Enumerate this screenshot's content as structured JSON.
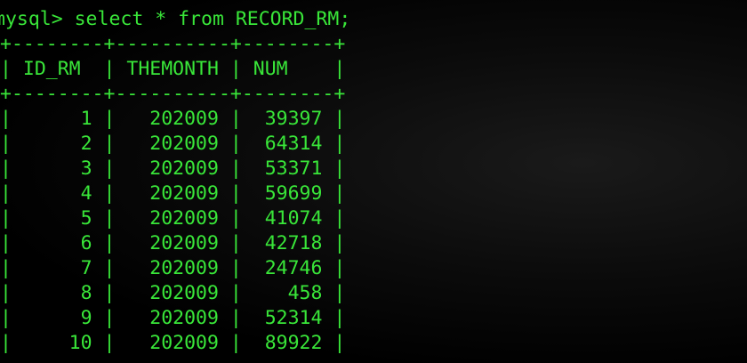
{
  "terminal": {
    "prompt": "mysql> ",
    "command": "select * from RECORD_RM;",
    "table": {
      "border": "+--------+----------+--------+",
      "columns": [
        "ID_RM",
        "THEMONTH",
        "NUM"
      ],
      "header_line": "| ID_RM  | THEMONTH | NUM    |",
      "rows": [
        {
          "id_rm": "1",
          "themonth": "202009",
          "num": "39397",
          "text": "|      1 |   202009 |  39397 |"
        },
        {
          "id_rm": "2",
          "themonth": "202009",
          "num": "64314",
          "text": "|      2 |   202009 |  64314 |"
        },
        {
          "id_rm": "3",
          "themonth": "202009",
          "num": "53371",
          "text": "|      3 |   202009 |  53371 |"
        },
        {
          "id_rm": "4",
          "themonth": "202009",
          "num": "59699",
          "text": "|      4 |   202009 |  59699 |"
        },
        {
          "id_rm": "5",
          "themonth": "202009",
          "num": "41074",
          "text": "|      5 |   202009 |  41074 |"
        },
        {
          "id_rm": "6",
          "themonth": "202009",
          "num": "42718",
          "text": "|      6 |   202009 |  42718 |"
        },
        {
          "id_rm": "7",
          "themonth": "202009",
          "num": "24746",
          "text": "|      7 |   202009 |  24746 |"
        },
        {
          "id_rm": "8",
          "themonth": "202009",
          "num": "458",
          "text": "|      8 |   202009 |    458 |"
        },
        {
          "id_rm": "9",
          "themonth": "202009",
          "num": "52314",
          "text": "|      9 |   202009 |  52314 |"
        },
        {
          "id_rm": "10",
          "themonth": "202009",
          "num": "89922",
          "text": "|     10 |   202009 |  89922 |"
        }
      ]
    },
    "colors": {
      "text": "#39e639",
      "background": "#000000"
    }
  }
}
